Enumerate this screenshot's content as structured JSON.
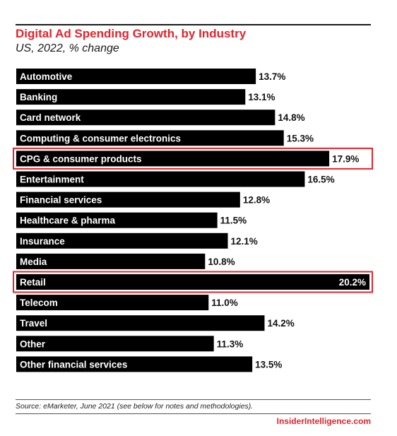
{
  "header": {
    "title": "Digital Ad Spending Growth, by Industry",
    "subtitle": "US, 2022, % change"
  },
  "footer": {
    "source": "Source: eMarketer, June 2021 (see below for notes and methodologies).",
    "brand": "InsiderIntelligence.com"
  },
  "colors": {
    "bar": "#000000",
    "title": "#e4232c",
    "highlight": "#e4232c"
  },
  "chart_data": {
    "type": "bar",
    "orientation": "horizontal",
    "title": "Digital Ad Spending Growth, by Industry",
    "subtitle": "US, 2022, % change",
    "categories": [
      "Automotive",
      "Banking",
      "Card network",
      "Computing & consumer electronics",
      "CPG & consumer products",
      "Entertainment",
      "Financial services",
      "Healthcare & pharma",
      "Insurance",
      "Media",
      "Retail",
      "Telecom",
      "Travel",
      "Other",
      "Other financial services"
    ],
    "values": [
      13.7,
      13.1,
      14.8,
      15.3,
      17.9,
      16.5,
      12.8,
      11.5,
      12.1,
      10.8,
      20.2,
      11.0,
      14.2,
      11.3,
      13.5
    ],
    "value_labels": [
      "13.7%",
      "13.1%",
      "14.8%",
      "15.3%",
      "17.9%",
      "16.5%",
      "12.8%",
      "11.5%",
      "12.1%",
      "10.8%",
      "20.2%",
      "11.0%",
      "14.2%",
      "11.3%",
      "13.5%"
    ],
    "highlighted": [
      "CPG & consumer products",
      "Retail"
    ],
    "xlim": [
      0,
      20.2
    ],
    "grid": false,
    "legend": "none"
  }
}
